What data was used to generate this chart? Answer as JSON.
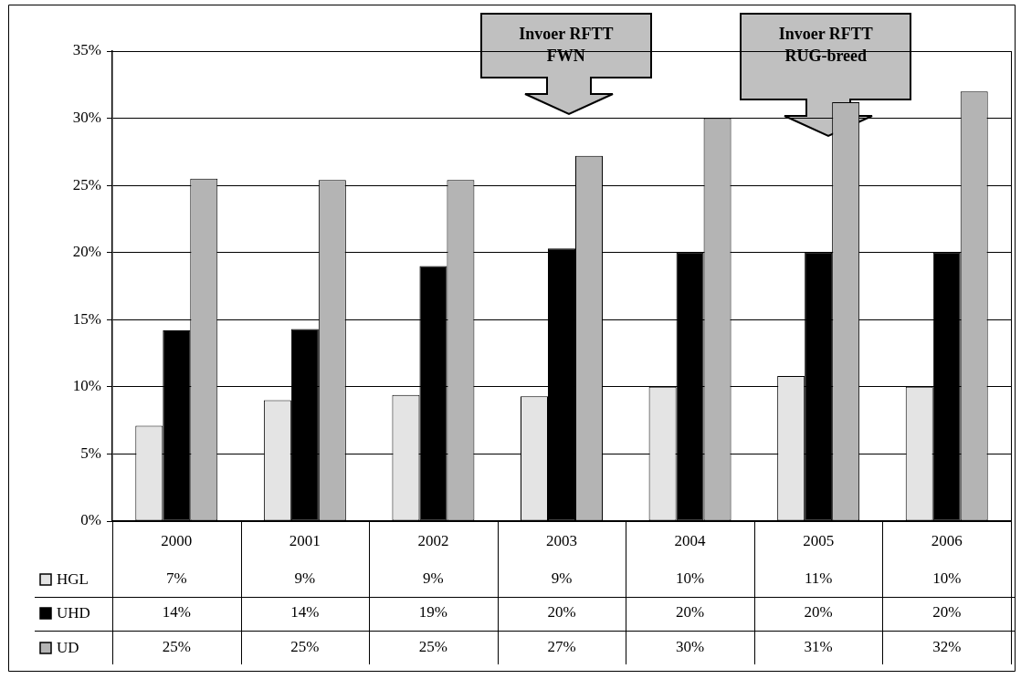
{
  "chart_data": {
    "type": "bar",
    "categories": [
      "2000",
      "2001",
      "2002",
      "2003",
      "2004",
      "2005",
      "2006"
    ],
    "series": [
      {
        "name": "HGL",
        "color": "#e4e4e4",
        "values": [
          7.1,
          9.0,
          9.4,
          9.3,
          10.0,
          10.8,
          10.0
        ],
        "value_labels": [
          "7%",
          "9%",
          "9%",
          "9%",
          "10%",
          "11%",
          "10%"
        ]
      },
      {
        "name": "UHD",
        "color": "#000000",
        "values": [
          14.2,
          14.3,
          19.0,
          20.3,
          20.0,
          20.0,
          20.0
        ],
        "value_labels": [
          "14%",
          "14%",
          "19%",
          "20%",
          "20%",
          "20%",
          "20%"
        ]
      },
      {
        "name": "UD",
        "color": "#b4b4b4",
        "values": [
          25.5,
          25.4,
          25.4,
          27.2,
          30.0,
          31.2,
          32.0
        ],
        "value_labels": [
          "25%",
          "25%",
          "25%",
          "27%",
          "30%",
          "31%",
          "32%"
        ]
      }
    ],
    "ylim": [
      0,
      35
    ],
    "yticks": [
      {
        "value": 0,
        "label": "0%"
      },
      {
        "value": 5,
        "label": "5%"
      },
      {
        "value": 10,
        "label": "10%"
      },
      {
        "value": 15,
        "label": "15%"
      },
      {
        "value": 20,
        "label": "20%"
      },
      {
        "value": 25,
        "label": "25%"
      },
      {
        "value": 30,
        "label": "30%"
      },
      {
        "value": 35,
        "label": "35%"
      }
    ],
    "grid": "y",
    "legend": "bottom left",
    "annotations": [
      "Invoer RFTT FWN",
      "Invoer RFTT RUG-breed"
    ]
  }
}
